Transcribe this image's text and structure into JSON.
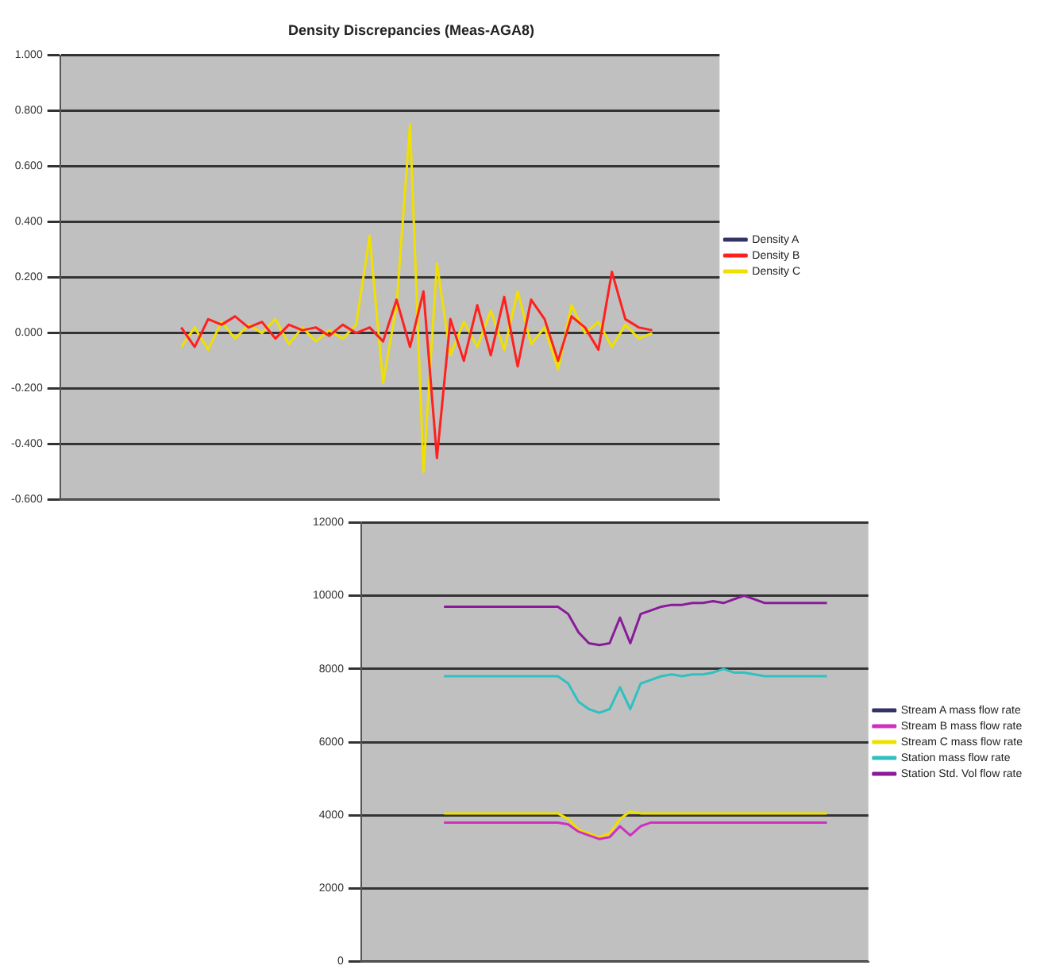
{
  "chart_data": [
    {
      "type": "line",
      "title": "Density Discrepancies (Meas-AGA8)",
      "categories": [
        null,
        null,
        null,
        null,
        null,
        null,
        null,
        null,
        null,
        null,
        null,
        null,
        null,
        null,
        null,
        null,
        null,
        null,
        null,
        null,
        null,
        null,
        null,
        null,
        null,
        null,
        null,
        null,
        null,
        null,
        null,
        null,
        null,
        null,
        null,
        null,
        null,
        null,
        null,
        null,
        null,
        null,
        null,
        null,
        null,
        null,
        null,
        null,
        null,
        null
      ],
      "series": [
        {
          "name": "Density A",
          "color": "#333366",
          "values": [
            null,
            null,
            null,
            null,
            null,
            null,
            null,
            null,
            null,
            null,
            null,
            null,
            null,
            null,
            null,
            null,
            null,
            null,
            null,
            null,
            null,
            null,
            null,
            null,
            null,
            null,
            null,
            null,
            null,
            null,
            null,
            null,
            null,
            null,
            null,
            null,
            null,
            null,
            null,
            null,
            null,
            null,
            null,
            null,
            null,
            null,
            null,
            null,
            null,
            null
          ]
        },
        {
          "name": "Density B",
          "color": "#ff2020",
          "values": [
            null,
            null,
            null,
            null,
            null,
            null,
            null,
            null,
            null,
            0.02,
            -0.05,
            0.05,
            0.03,
            0.06,
            0.02,
            0.04,
            -0.02,
            0.03,
            0.01,
            0.02,
            -0.01,
            0.03,
            0.0,
            0.02,
            -0.03,
            0.12,
            -0.05,
            0.15,
            -0.45,
            0.05,
            -0.1,
            0.1,
            -0.08,
            0.13,
            -0.12,
            0.12,
            0.05,
            -0.1,
            0.06,
            0.02,
            -0.06,
            0.22,
            0.05,
            0.02,
            0.01,
            null,
            null,
            null,
            null,
            null
          ]
        },
        {
          "name": "Density C",
          "color": "#f0e000",
          "values": [
            null,
            null,
            null,
            null,
            null,
            null,
            null,
            null,
            null,
            -0.05,
            0.02,
            -0.06,
            0.04,
            -0.02,
            0.03,
            0.0,
            0.05,
            -0.04,
            0.02,
            -0.03,
            0.01,
            -0.02,
            0.03,
            0.35,
            -0.18,
            0.1,
            0.75,
            -0.5,
            0.25,
            -0.08,
            0.04,
            -0.05,
            0.08,
            -0.06,
            0.15,
            -0.04,
            0.02,
            -0.13,
            0.1,
            0.0,
            0.04,
            -0.05,
            0.03,
            -0.02,
            0.0,
            null,
            null,
            null,
            null,
            null
          ]
        }
      ],
      "ylim": [
        -0.6,
        1.0
      ],
      "yticks": [
        {
          "value": -0.6,
          "label": "-0.600"
        },
        {
          "value": -0.4,
          "label": "-0.400"
        },
        {
          "value": -0.2,
          "label": "-0.200"
        },
        {
          "value": 0,
          "label": "0.000"
        },
        {
          "value": 0.2,
          "label": "0.200"
        },
        {
          "value": 0.4,
          "label": "0.400"
        },
        {
          "value": 0.6,
          "label": "0.600"
        },
        {
          "value": 0.8,
          "label": "0.800"
        },
        {
          "value": 1.0,
          "label": "1.000"
        }
      ],
      "grid": "y",
      "legend": "right",
      "tick_labels": "y",
      "marker": "none"
    },
    {
      "type": "line",
      "categories": [
        null,
        null,
        null,
        null,
        null,
        null,
        null,
        null,
        null,
        null,
        null,
        null,
        null,
        null,
        null,
        null,
        null,
        null,
        null,
        null,
        null,
        null,
        null,
        null,
        null,
        null,
        null,
        null,
        null,
        null,
        null,
        null,
        null,
        null,
        null,
        null,
        null,
        null,
        null,
        null,
        null,
        null,
        null,
        null,
        null,
        null,
        null,
        null,
        null,
        null
      ],
      "series": [
        {
          "name": "Stream A mass flow rate",
          "color": "#333366",
          "values": [
            null,
            null,
            null,
            null,
            null,
            null,
            null,
            null,
            null,
            null,
            null,
            null,
            null,
            null,
            null,
            null,
            null,
            null,
            null,
            null,
            null,
            null,
            null,
            null,
            null,
            null,
            null,
            null,
            null,
            null,
            null,
            null,
            null,
            null,
            null,
            null,
            null,
            null,
            null,
            null,
            null,
            null,
            null,
            null,
            null,
            null,
            null,
            null,
            null,
            null
          ]
        },
        {
          "name": "Stream B mass flow rate",
          "color": "#d030c0",
          "values": [
            null,
            null,
            null,
            null,
            null,
            null,
            null,
            null,
            3800,
            3800,
            3800,
            3800,
            3800,
            3800,
            3800,
            3800,
            3800,
            3800,
            3800,
            3800,
            3750,
            3550,
            3450,
            3350,
            3400,
            3700,
            3450,
            3700,
            3800,
            3800,
            3800,
            3800,
            3800,
            3800,
            3800,
            3800,
            3800,
            3800,
            3800,
            3800,
            3800,
            3800,
            3800,
            3800,
            3800,
            3800,
            null,
            null,
            null,
            null
          ]
        },
        {
          "name": "Stream C mass flow rate",
          "color": "#f0e000",
          "values": [
            null,
            null,
            null,
            null,
            null,
            null,
            null,
            null,
            4050,
            4050,
            4050,
            4050,
            4050,
            4050,
            4050,
            4050,
            4050,
            4050,
            4050,
            4050,
            3900,
            3600,
            3500,
            3400,
            3500,
            3900,
            4100,
            4050,
            4050,
            4050,
            4050,
            4050,
            4050,
            4050,
            4050,
            4050,
            4050,
            4050,
            4050,
            4050,
            4050,
            4050,
            4050,
            4050,
            4050,
            4050,
            null,
            null,
            null,
            null
          ]
        },
        {
          "name": "Station mass flow rate",
          "color": "#30c0c0",
          "values": [
            null,
            null,
            null,
            null,
            null,
            null,
            null,
            null,
            7800,
            7800,
            7800,
            7800,
            7800,
            7800,
            7800,
            7800,
            7800,
            7800,
            7800,
            7800,
            7600,
            7100,
            6900,
            6800,
            6900,
            7500,
            6900,
            7600,
            7700,
            7800,
            7850,
            7800,
            7850,
            7850,
            7900,
            8000,
            7900,
            7900,
            7850,
            7800,
            7800,
            7800,
            7800,
            7800,
            7800,
            7800,
            null,
            null,
            null,
            null
          ]
        },
        {
          "name": "Station Std. Vol flow rate",
          "color": "#8a1a9a",
          "values": [
            null,
            null,
            null,
            null,
            null,
            null,
            null,
            null,
            9700,
            9700,
            9700,
            9700,
            9700,
            9700,
            9700,
            9700,
            9700,
            9700,
            9700,
            9700,
            9500,
            9000,
            8700,
            8650,
            8700,
            9400,
            8700,
            9500,
            9600,
            9700,
            9750,
            9750,
            9800,
            9800,
            9850,
            9800,
            9900,
            10000,
            9900,
            9800,
            9800,
            9800,
            9800,
            9800,
            9800,
            9800,
            null,
            null,
            null,
            null
          ]
        }
      ],
      "ylim": [
        0,
        12000
      ],
      "yticks": [
        0,
        2000,
        4000,
        6000,
        8000,
        10000,
        12000
      ],
      "grid": "y",
      "legend": "right",
      "tick_labels": "y",
      "marker": "none"
    }
  ]
}
